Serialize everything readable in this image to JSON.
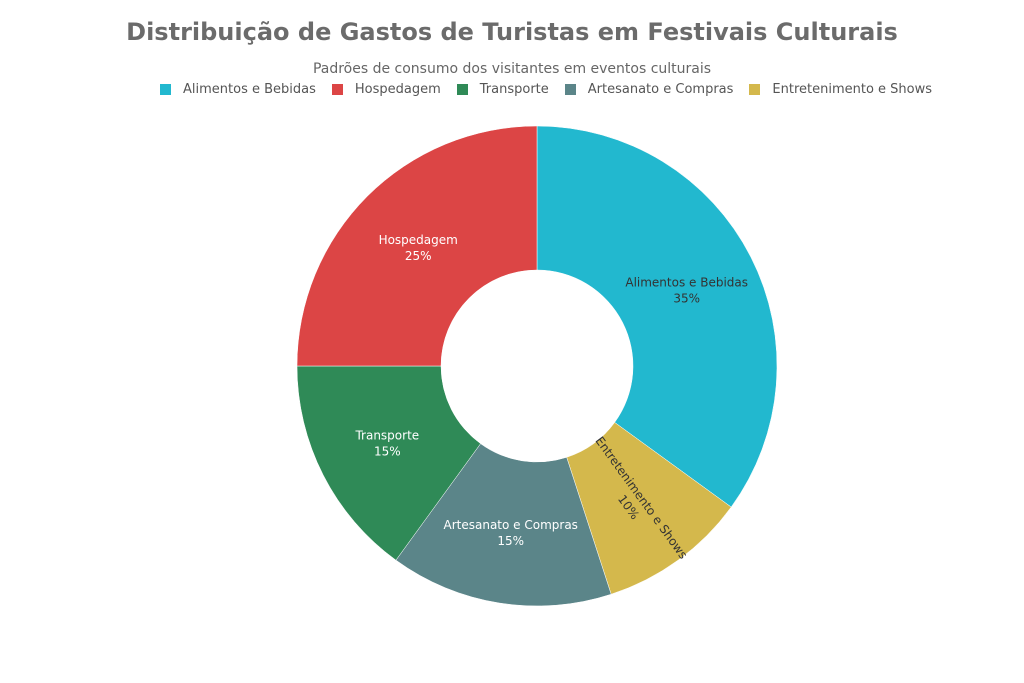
{
  "chart_data": {
    "type": "pie",
    "title": "Distribuição de Gastos de Turistas em Festivais Culturais",
    "subtitle": "Padrões de consumo dos visitantes em eventos culturais",
    "legend_position": "top",
    "hole": 0.4,
    "categories": [
      "Alimentos e Bebidas",
      "Hospedagem",
      "Transporte",
      "Artesanato e Compras",
      "Entretenimento e Shows"
    ],
    "legend_order": [
      "Alimentos e Bebidas",
      "Hospedagem",
      "Transporte",
      "Artesanato e Compras",
      "Entretenimento e Shows"
    ],
    "draw_order": [
      "Alimentos e Bebidas",
      "Entretenimento e Shows",
      "Artesanato e Compras",
      "Transporte",
      "Hospedagem"
    ],
    "values": [
      35,
      25,
      15,
      15,
      10
    ],
    "value_labels": [
      "35%",
      "25%",
      "15%",
      "15%",
      "10%"
    ],
    "colors": [
      "#22b8cf",
      "#dc4545",
      "#2f8a57",
      "#5b8589",
      "#d4b84c"
    ],
    "label_colors": [
      "#333333",
      "#ffffff",
      "#ffffff",
      "#ffffff",
      "#333333"
    ]
  }
}
